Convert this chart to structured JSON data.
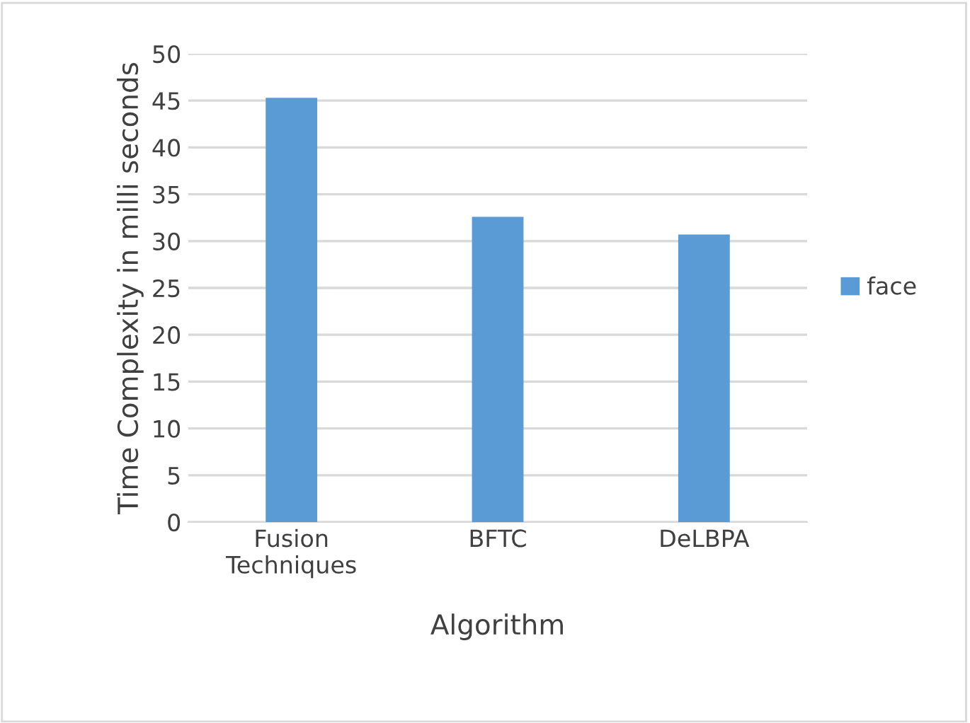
{
  "chart_data": {
    "type": "bar",
    "xlabel": "Algorithm",
    "ylabel": "Time Complexity in milli seconds",
    "categories": [
      "Fusion\nTechniques",
      "BFTC",
      "DeLBPA"
    ],
    "series": [
      {
        "name": "face",
        "color": "#5b9bd5",
        "values": [
          45.3,
          32.6,
          30.7
        ]
      }
    ],
    "ylim": [
      0,
      50
    ],
    "yticks": [
      0,
      5,
      10,
      15,
      20,
      25,
      30,
      35,
      40,
      45,
      50
    ],
    "grid": "y",
    "legend": "right"
  }
}
